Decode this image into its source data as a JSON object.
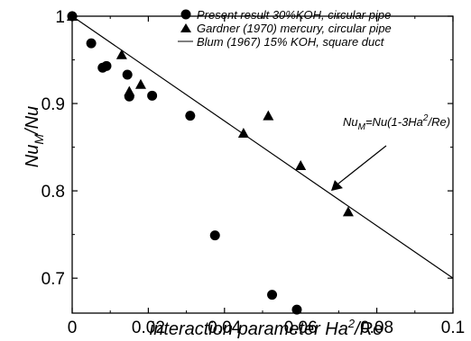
{
  "chart_data": {
    "type": "scatter",
    "xlabel_parts": [
      "interaction parameter Ha",
      "2",
      "/Re"
    ],
    "ylabel_parts": [
      "Nu",
      "M",
      "/Nu"
    ],
    "xlim": [
      0,
      0.1
    ],
    "ylim": [
      0.66,
      1.0
    ],
    "xticks": [
      0,
      0.02,
      0.04,
      0.06,
      0.08,
      0.1
    ],
    "xtick_labels": [
      "0",
      "0.02",
      "0.04",
      "0.06",
      "0.08",
      "0.1"
    ],
    "yticks": [
      0.7,
      0.8,
      0.9,
      1.0
    ],
    "ytick_labels": [
      "0.7",
      "0.8",
      "0.9",
      "1"
    ],
    "grid": false,
    "legend_position": "top-right",
    "series": [
      {
        "name": "Present result 30%KOH, circular pipe",
        "marker": "circle",
        "color": "#000000",
        "points": [
          [
            0.0,
            1.0
          ],
          [
            0.005,
            0.969
          ],
          [
            0.008,
            0.941
          ],
          [
            0.009,
            0.943
          ],
          [
            0.0145,
            0.933
          ],
          [
            0.015,
            0.908
          ],
          [
            0.021,
            0.909
          ],
          [
            0.031,
            0.886
          ],
          [
            0.0375,
            0.749
          ],
          [
            0.0525,
            0.681
          ],
          [
            0.059,
            0.664
          ]
        ]
      },
      {
        "name": "Gardner (1970) mercury, circular pipe",
        "marker": "triangle",
        "color": "#000000",
        "points": [
          [
            0.0,
            1.0
          ],
          [
            0.013,
            0.956
          ],
          [
            0.015,
            0.914
          ],
          [
            0.018,
            0.922
          ],
          [
            0.045,
            0.866
          ],
          [
            0.0515,
            0.886
          ],
          [
            0.06,
            0.829
          ],
          [
            0.0725,
            0.776
          ]
        ]
      },
      {
        "name": "Blum (1967) 15% KOH, square duct",
        "marker": "line",
        "color": "#000000",
        "line": [
          [
            0.0,
            1.0
          ],
          [
            0.1,
            0.7
          ]
        ]
      }
    ],
    "annotation": {
      "text_parts": [
        "Nu",
        "M",
        "=Nu(1-3Ha",
        "2",
        "/Re)"
      ],
      "arrow_target": [
        0.068,
        0.8
      ]
    }
  }
}
